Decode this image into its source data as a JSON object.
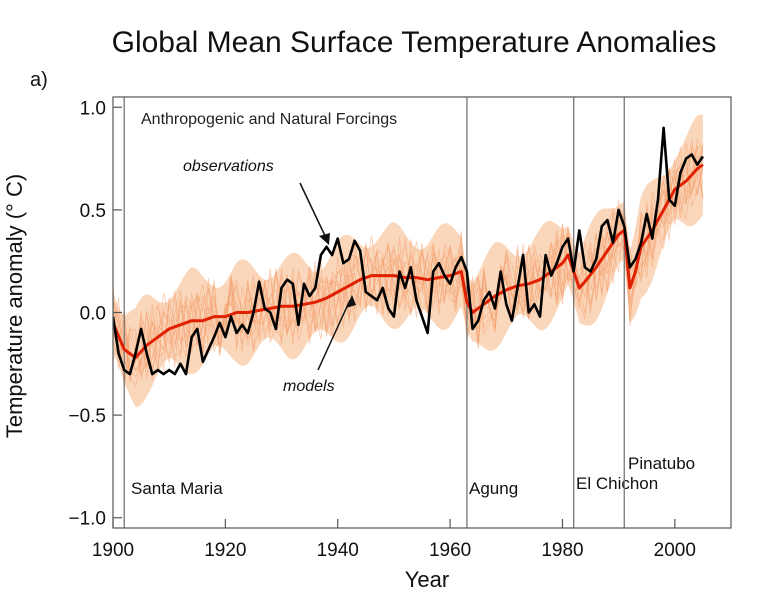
{
  "chart_data": {
    "type": "line",
    "title": "Global Mean Surface Temperature Anomalies",
    "panel_label": "a)",
    "subtitle": "Anthropogenic and Natural Forcings",
    "xlabel": "Year",
    "ylabel": "Temperature anomaly (° C)",
    "xlim": [
      1900,
      2010
    ],
    "ylim": [
      -1.05,
      1.05
    ],
    "xticks": [
      1900,
      1920,
      1940,
      1960,
      1980,
      2000
    ],
    "yticks": [
      -1.0,
      -0.5,
      0.0,
      0.5,
      1.0
    ],
    "ytick_labels": [
      "−1.0",
      "−0.5",
      "0.0",
      "0.5",
      "1.0"
    ],
    "grid": false,
    "annotations": [
      {
        "text": "observations"
      },
      {
        "text": "models"
      }
    ],
    "volcanic_eruptions": [
      {
        "name": "Santa Maria",
        "year": 1902
      },
      {
        "name": "Agung",
        "year": 1963
      },
      {
        "name": "El Chichon",
        "year": 1982
      },
      {
        "name": "Pinatubo",
        "year": 1991
      }
    ],
    "colors": {
      "observations": "#000000",
      "model_mean": "#e02000",
      "ensemble": "#f4a070",
      "spread": "#f8c9a4",
      "volcano_line": "#777777"
    },
    "series": [
      {
        "name": "observations",
        "x": [
          1900,
          1901,
          1902,
          1903,
          1904,
          1905,
          1906,
          1907,
          1908,
          1909,
          1910,
          1911,
          1912,
          1913,
          1914,
          1915,
          1916,
          1917,
          1918,
          1919,
          1920,
          1921,
          1922,
          1923,
          1924,
          1925,
          1926,
          1927,
          1928,
          1929,
          1930,
          1931,
          1932,
          1933,
          1934,
          1935,
          1936,
          1937,
          1938,
          1939,
          1940,
          1941,
          1942,
          1943,
          1944,
          1945,
          1946,
          1947,
          1948,
          1949,
          1950,
          1951,
          1952,
          1953,
          1954,
          1955,
          1956,
          1957,
          1958,
          1959,
          1960,
          1961,
          1962,
          1963,
          1964,
          1965,
          1966,
          1967,
          1968,
          1969,
          1970,
          1971,
          1972,
          1973,
          1974,
          1975,
          1976,
          1977,
          1978,
          1979,
          1980,
          1981,
          1982,
          1983,
          1984,
          1985,
          1986,
          1987,
          1988,
          1989,
          1990,
          1991,
          1992,
          1993,
          1994,
          1995,
          1996,
          1997,
          1998,
          1999,
          2000,
          2001,
          2002,
          2003,
          2004,
          2005
        ],
        "values": [
          -0.02,
          -0.2,
          -0.28,
          -0.3,
          -0.2,
          -0.08,
          -0.2,
          -0.3,
          -0.28,
          -0.3,
          -0.28,
          -0.3,
          -0.25,
          -0.3,
          -0.12,
          -0.08,
          -0.24,
          -0.18,
          -0.12,
          -0.05,
          -0.12,
          -0.02,
          -0.1,
          -0.06,
          -0.1,
          0.0,
          0.15,
          0.02,
          0.0,
          -0.08,
          0.12,
          0.16,
          0.14,
          -0.06,
          0.14,
          0.08,
          0.12,
          0.28,
          0.32,
          0.28,
          0.36,
          0.24,
          0.26,
          0.35,
          0.3,
          0.1,
          0.08,
          0.06,
          0.12,
          0.02,
          -0.02,
          0.2,
          0.12,
          0.22,
          0.06,
          -0.02,
          -0.1,
          0.2,
          0.24,
          0.18,
          0.14,
          0.22,
          0.27,
          0.2,
          -0.08,
          -0.04,
          0.06,
          0.1,
          0.02,
          0.2,
          0.04,
          -0.04,
          0.12,
          0.28,
          0.0,
          0.04,
          -0.02,
          0.28,
          0.18,
          0.24,
          0.32,
          0.36,
          0.2,
          0.4,
          0.22,
          0.2,
          0.26,
          0.42,
          0.45,
          0.34,
          0.5,
          0.42,
          0.22,
          0.26,
          0.34,
          0.48,
          0.36,
          0.55,
          0.9,
          0.55,
          0.52,
          0.68,
          0.75,
          0.77,
          0.72,
          0.76
        ]
      },
      {
        "name": "models",
        "x": [
          1900,
          1902,
          1904,
          1906,
          1908,
          1910,
          1912,
          1914,
          1916,
          1918,
          1920,
          1922,
          1924,
          1926,
          1928,
          1930,
          1932,
          1934,
          1936,
          1938,
          1940,
          1942,
          1944,
          1946,
          1948,
          1950,
          1952,
          1954,
          1956,
          1958,
          1960,
          1962,
          1963,
          1964,
          1966,
          1968,
          1970,
          1972,
          1974,
          1976,
          1978,
          1980,
          1981,
          1982,
          1983,
          1984,
          1986,
          1988,
          1990,
          1991,
          1992,
          1993,
          1994,
          1996,
          1998,
          2000,
          2002,
          2004,
          2005
        ],
        "values": [
          -0.05,
          -0.18,
          -0.22,
          -0.16,
          -0.12,
          -0.08,
          -0.06,
          -0.04,
          -0.04,
          -0.02,
          -0.02,
          0.0,
          0.0,
          0.01,
          0.02,
          0.03,
          0.03,
          0.04,
          0.05,
          0.07,
          0.1,
          0.13,
          0.16,
          0.18,
          0.18,
          0.18,
          0.17,
          0.17,
          0.16,
          0.17,
          0.18,
          0.2,
          0.05,
          0.0,
          0.04,
          0.08,
          0.11,
          0.13,
          0.14,
          0.16,
          0.2,
          0.24,
          0.28,
          0.2,
          0.12,
          0.15,
          0.22,
          0.3,
          0.38,
          0.4,
          0.12,
          0.2,
          0.32,
          0.4,
          0.5,
          0.6,
          0.64,
          0.7,
          0.72
        ]
      }
    ]
  }
}
